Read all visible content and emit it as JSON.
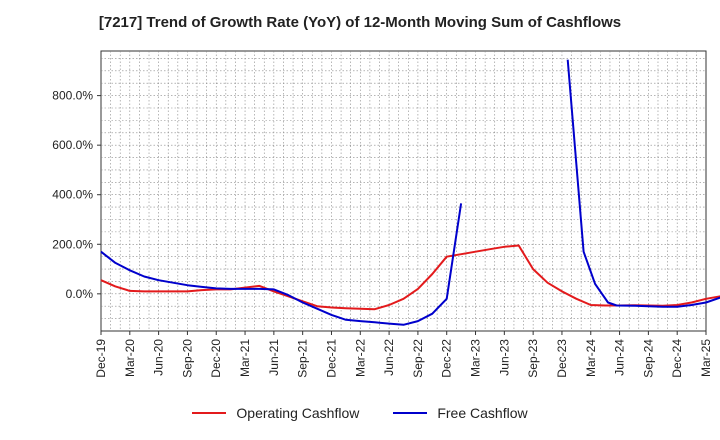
{
  "chart_data": {
    "type": "line",
    "title": "[7217]  Trend of Growth Rate (YoY) of 12-Month Moving Sum of Cashflows",
    "xlabel": "",
    "ylabel": "",
    "ylim": [
      -150,
      980
    ],
    "yticks": [
      0,
      200,
      400,
      600,
      800
    ],
    "ytick_labels": [
      "0.0%",
      "200.0%",
      "400.0%",
      "600.0%",
      "800.0%"
    ],
    "xtick_labels": [
      "Dec-19",
      "Mar-20",
      "Jun-20",
      "Sep-20",
      "Dec-20",
      "Mar-21",
      "Jun-21",
      "Sep-21",
      "Dec-21",
      "Mar-22",
      "Jun-22",
      "Sep-22",
      "Dec-22",
      "Mar-23",
      "Jun-23",
      "Sep-23",
      "Dec-23",
      "Mar-24",
      "Jun-24",
      "Sep-24",
      "Dec-24",
      "Mar-25"
    ],
    "grid": true,
    "legend_position": "bottom",
    "series": [
      {
        "name": "Operating Cashflow",
        "color": "#e31a1c",
        "points": [
          [
            0,
            55
          ],
          [
            1,
            30
          ],
          [
            2,
            12
          ],
          [
            3,
            10
          ],
          [
            4,
            10
          ],
          [
            5,
            10
          ],
          [
            6,
            10
          ],
          [
            7,
            15
          ],
          [
            8,
            18
          ],
          [
            9,
            18
          ],
          [
            10,
            25
          ],
          [
            11,
            32
          ],
          [
            12,
            10
          ],
          [
            13,
            -10
          ],
          [
            14,
            -30
          ],
          [
            15,
            -50
          ],
          [
            16,
            -55
          ],
          [
            17,
            -58
          ],
          [
            18,
            -60
          ],
          [
            19,
            -62
          ],
          [
            20,
            -45
          ],
          [
            21,
            -20
          ],
          [
            22,
            20
          ],
          [
            23,
            80
          ],
          [
            24,
            150
          ],
          [
            25,
            160
          ],
          [
            26,
            170
          ],
          [
            27,
            180
          ],
          [
            28,
            190
          ],
          [
            29,
            195
          ],
          [
            30,
            100
          ],
          [
            31,
            45
          ],
          [
            32,
            10
          ],
          [
            33,
            -20
          ],
          [
            34,
            -45
          ],
          [
            35,
            -47
          ],
          [
            36,
            -47
          ],
          [
            37,
            -46
          ],
          [
            38,
            -47
          ],
          [
            39,
            -48
          ],
          [
            40,
            -45
          ],
          [
            41,
            -35
          ],
          [
            42,
            -20
          ],
          [
            43,
            -10
          ],
          [
            44,
            5
          ]
        ]
      },
      {
        "name": "Free Cashflow",
        "color": "#0000cc",
        "points": [
          [
            0,
            170
          ],
          [
            1,
            125
          ],
          [
            2,
            95
          ],
          [
            3,
            70
          ],
          [
            4,
            55
          ],
          [
            5,
            45
          ],
          [
            6,
            35
          ],
          [
            7,
            28
          ],
          [
            8,
            22
          ],
          [
            9,
            20
          ],
          [
            10,
            20
          ],
          [
            11,
            20
          ],
          [
            12,
            18
          ],
          [
            13,
            -5
          ],
          [
            14,
            -35
          ],
          [
            15,
            -60
          ],
          [
            16,
            -85
          ],
          [
            17,
            -105
          ],
          [
            18,
            -110
          ],
          [
            19,
            -115
          ],
          [
            20,
            -120
          ],
          [
            21,
            -125
          ],
          [
            22,
            -110
          ],
          [
            23,
            -80
          ],
          [
            24,
            -20
          ],
          [
            25,
            365
          ]
        ],
        "points2": [
          [
            32.4,
            945
          ],
          [
            33.5,
            170
          ],
          [
            34.3,
            40
          ],
          [
            35.2,
            -35
          ],
          [
            35.8,
            -47
          ],
          [
            37,
            -48
          ],
          [
            38,
            -50
          ],
          [
            39,
            -52
          ],
          [
            40,
            -52
          ],
          [
            41,
            -45
          ],
          [
            42,
            -35
          ],
          [
            43,
            -15
          ],
          [
            44,
            5
          ],
          [
            44.8,
            35
          ]
        ]
      }
    ]
  }
}
